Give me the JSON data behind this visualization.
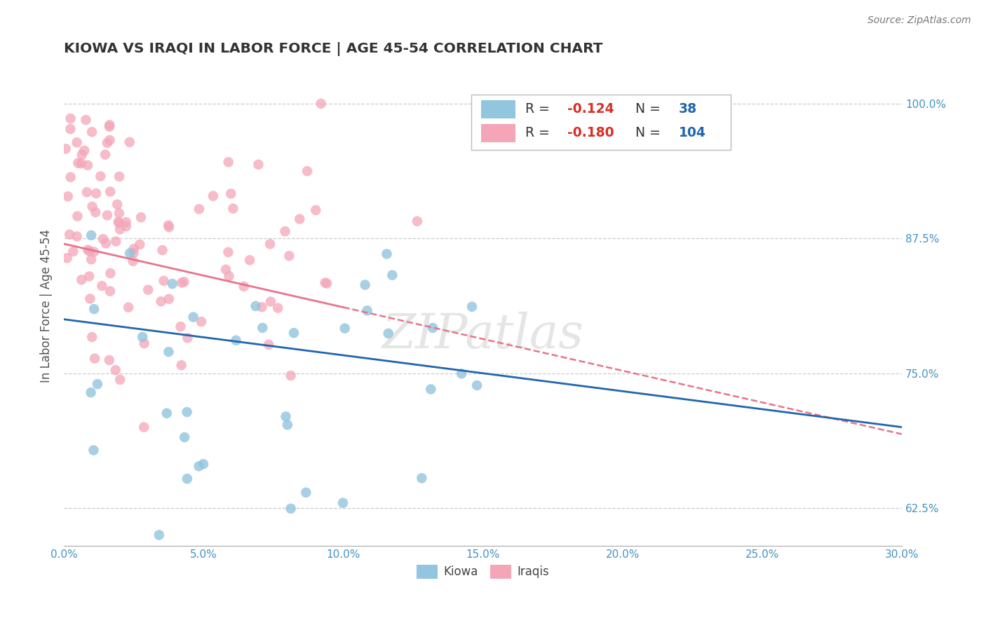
{
  "title": "KIOWA VS IRAQI IN LABOR FORCE | AGE 45-54 CORRELATION CHART",
  "source": "Source: ZipAtlas.com",
  "ylabel": "In Labor Force | Age 45-54",
  "xlim": [
    0.0,
    30.0
  ],
  "ylim": [
    59.0,
    103.5
  ],
  "xtick_vals": [
    0,
    5,
    10,
    15,
    20,
    25,
    30
  ],
  "ytick_vals": [
    62.5,
    75.0,
    87.5,
    100.0
  ],
  "kiowa_R": -0.124,
  "kiowa_N": 38,
  "iraqi_R": -0.18,
  "iraqi_N": 104,
  "kiowa_color": "#92c5de",
  "iraqi_color": "#f4a6b8",
  "kiowa_line_color": "#2166ac",
  "iraqi_line_color": "#d6604d",
  "watermark": "ZIPatlas",
  "legend_kiowa_label": "Kiowa",
  "legend_iraqi_label": "Iraqis",
  "r_color": "#d73027",
  "n_color": "#2166ac",
  "label_color": "#333333",
  "tick_color": "#4393c3"
}
